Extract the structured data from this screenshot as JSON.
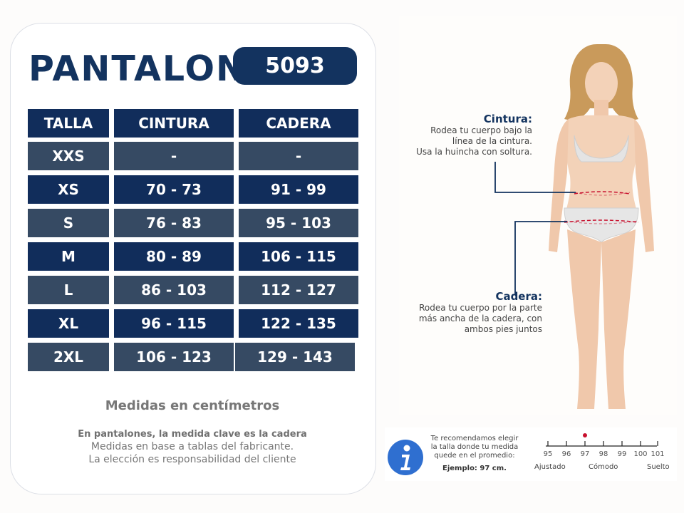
{
  "header": {
    "title": "PANTALON",
    "model": "5093"
  },
  "table": {
    "columns": [
      "TALLA",
      "CINTURA",
      "CADERA"
    ],
    "rows": [
      {
        "talla": "XXS",
        "cintura": "-",
        "cadera": "-"
      },
      {
        "talla": "XS",
        "cintura": "70 - 73",
        "cadera": "91 - 99"
      },
      {
        "talla": "S",
        "cintura": "76 - 83",
        "cadera": "95 - 103"
      },
      {
        "talla": "M",
        "cintura": "80 - 89",
        "cadera": "106 - 115"
      },
      {
        "talla": "L",
        "cintura": "86 - 103",
        "cadera": "112 - 127"
      },
      {
        "talla": "XL",
        "cintura": "96 - 115",
        "cadera": "122 - 135"
      },
      {
        "talla": "2XL",
        "cintura": "106 - 123",
        "cadera": "129 - 143"
      }
    ]
  },
  "notes": {
    "units": "Medidas en centímetros",
    "key": "En pantalones, la medida clave es la cadera",
    "line1": "Medidas en base a tablas del fabricante.",
    "line2": "La elección es responsabilidad del cliente"
  },
  "guide": {
    "waist": {
      "heading": "Cintura:",
      "lines": [
        "Rodea tu cuerpo bajo la",
        "línea de la cintura.",
        "Usa la huincha con soltura."
      ]
    },
    "hip": {
      "heading": "Cadera:",
      "lines": [
        "Rodea tu cuerpo por la parte",
        "más ancha de la cadera, con",
        "ambos pies juntos"
      ]
    }
  },
  "info": {
    "icon": "info-icon",
    "lines": [
      "Te recomendamos elegir",
      "la talla donde tu medida",
      "quede en el promedio:"
    ],
    "example": "Ejemplo: 97 cm.",
    "scale": [
      "95",
      "96",
      "97",
      "98",
      "99",
      "100",
      "101"
    ],
    "marker_value": "97",
    "fit_labels": [
      "Ajustado",
      "Cómodo",
      "Suelto"
    ]
  },
  "colors": {
    "navy": "#13335f",
    "slate": "#364a63",
    "red": "#c8102e"
  }
}
